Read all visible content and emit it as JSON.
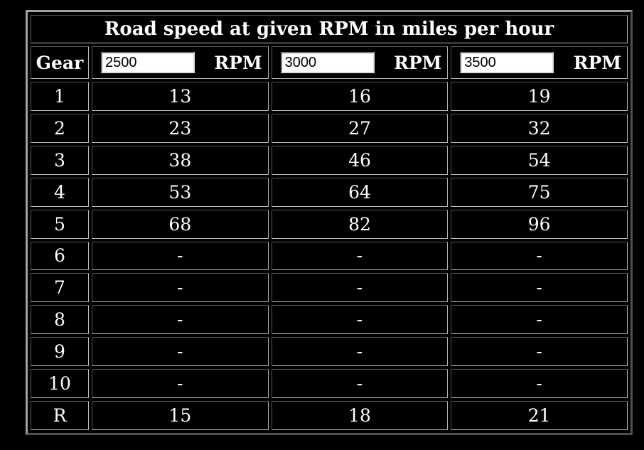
{
  "table": {
    "title": "Road speed at given RPM in miles per hour",
    "header": {
      "gear": "Gear",
      "rpm_inputs": [
        "2500",
        "3000",
        "3500"
      ],
      "unit": "RPM"
    },
    "rows": [
      [
        "1",
        13,
        16,
        19
      ],
      [
        "2",
        23,
        27,
        32
      ],
      [
        "3",
        38,
        46,
        54
      ],
      [
        "4",
        53,
        64,
        75
      ],
      [
        "5",
        68,
        82,
        96
      ],
      [
        "6",
        "-",
        "-",
        "-"
      ],
      [
        "7",
        "-",
        "-",
        "-"
      ],
      [
        "8",
        "-",
        "-",
        "-"
      ],
      [
        "9",
        "-",
        "-",
        "-"
      ],
      [
        "10",
        "-",
        "-",
        "-"
      ],
      [
        "R",
        15,
        18,
        21
      ]
    ]
  }
}
